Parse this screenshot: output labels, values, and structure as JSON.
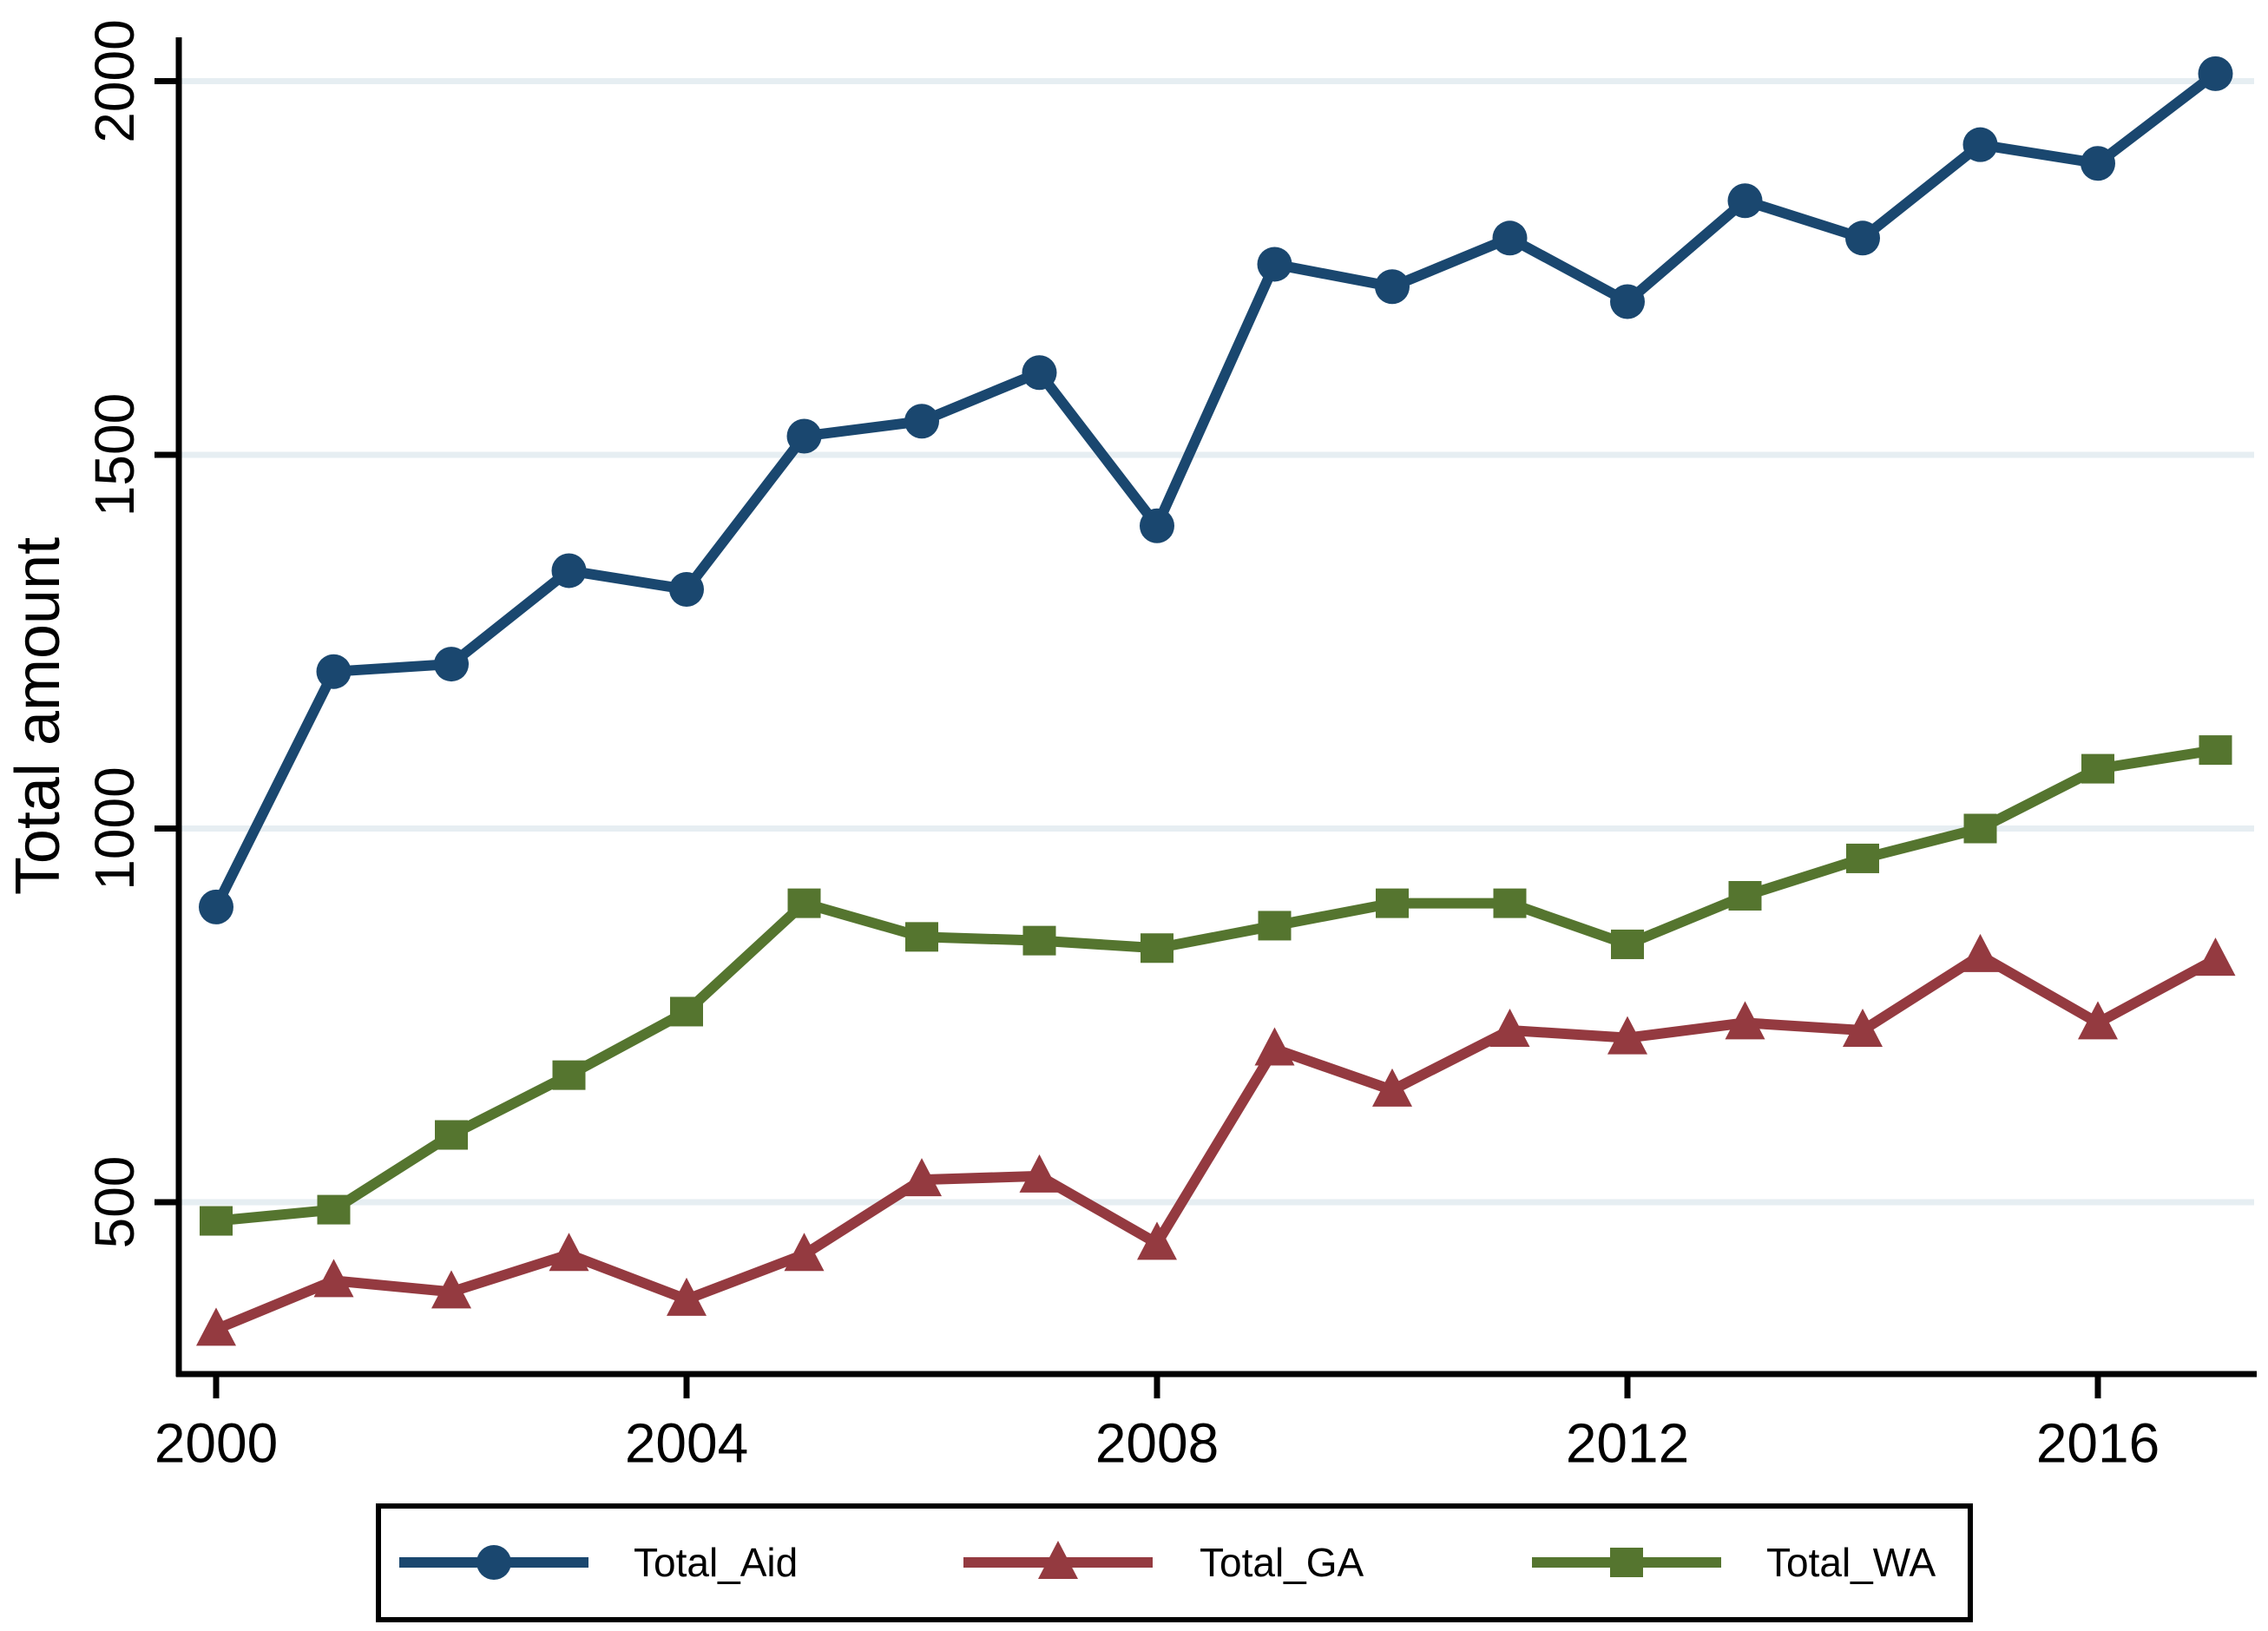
{
  "chart_data": {
    "type": "line",
    "title": "",
    "xlabel": "",
    "ylabel": "Total amount",
    "x": [
      2000,
      2001,
      2002,
      2003,
      2004,
      2005,
      2006,
      2007,
      2008,
      2009,
      2010,
      2011,
      2012,
      2013,
      2014,
      2015,
      2016,
      2017
    ],
    "x_ticks": [
      2000,
      2004,
      2008,
      2012,
      2016
    ],
    "y_ticks": [
      500,
      1000,
      1500,
      2000
    ],
    "xlim": [
      1999.7,
      2017.3
    ],
    "ylim": [
      270,
      2060
    ],
    "grid": "horizontal",
    "legend_position": "bottom",
    "series": [
      {
        "name": "Total_Aid",
        "marker": "circle",
        "color": "#1a476f",
        "values": [
          895,
          1210,
          1220,
          1345,
          1320,
          1525,
          1545,
          1610,
          1405,
          1755,
          1725,
          1790,
          1705,
          1840,
          1790,
          1915,
          1890,
          2010
        ]
      },
      {
        "name": "Total_GA",
        "marker": "triangle",
        "color": "#943a40",
        "values": [
          330,
          395,
          380,
          430,
          370,
          430,
          530,
          535,
          445,
          705,
          650,
          730,
          720,
          740,
          730,
          830,
          740,
          825
        ]
      },
      {
        "name": "Total_WA",
        "marker": "square",
        "color": "#55752f",
        "values": [
          475,
          490,
          590,
          670,
          755,
          900,
          855,
          850,
          840,
          870,
          900,
          900,
          845,
          910,
          960,
          1000,
          1080,
          1105
        ]
      }
    ]
  }
}
